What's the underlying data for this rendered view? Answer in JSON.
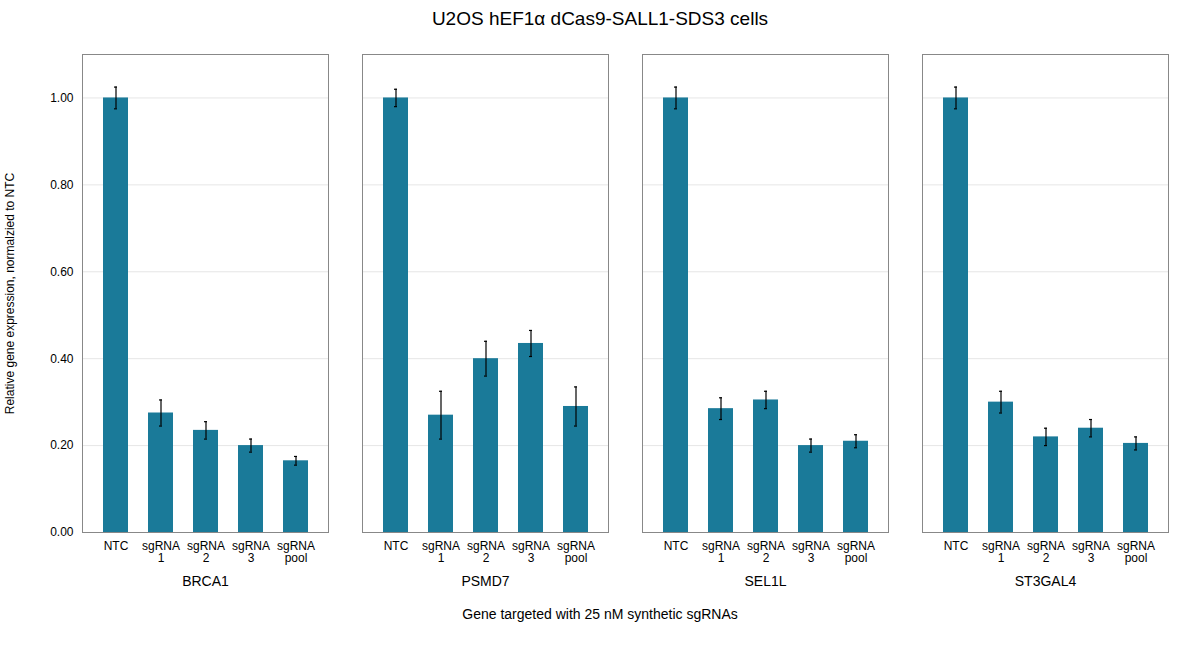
{
  "chart_data": {
    "type": "bar",
    "title": "U2OS hEF1α dCas9-SALL1-SDS3 cells",
    "xlabel": "Gene targeted with 25 nM synthetic sgRNAs",
    "ylabel": "Relative gene expression, normalzied to NTC",
    "color": "#1a7a99",
    "categories": [
      "NTC",
      "sgRNA\n1",
      "sgRNA\n2",
      "sgRNA\n3",
      "sgRNA\npool"
    ],
    "groups": [
      {
        "name": "BRCA1",
        "values": [
          1.0,
          0.275,
          0.235,
          0.2,
          0.165
        ],
        "errors": [
          0.025,
          0.03,
          0.02,
          0.015,
          0.01
        ]
      },
      {
        "name": "PSMD7",
        "values": [
          1.0,
          0.27,
          0.4,
          0.435,
          0.29
        ],
        "errors": [
          0.02,
          0.055,
          0.04,
          0.03,
          0.045
        ]
      },
      {
        "name": "SEL1L",
        "values": [
          1.0,
          0.285,
          0.305,
          0.2,
          0.21
        ],
        "errors": [
          0.025,
          0.025,
          0.02,
          0.015,
          0.015
        ]
      },
      {
        "name": "ST3GAL4",
        "values": [
          1.0,
          0.3,
          0.22,
          0.24,
          0.205
        ],
        "errors": [
          0.025,
          0.025,
          0.02,
          0.02,
          0.015
        ]
      }
    ],
    "ylim": [
      0,
      1.1
    ],
    "yticks": [
      {
        "value": 0.0,
        "label": "0.00"
      },
      {
        "value": 0.2,
        "label": "0.20"
      },
      {
        "value": 0.4,
        "label": "0.40"
      },
      {
        "value": 0.6,
        "label": "0.60"
      },
      {
        "value": 0.8,
        "label": "0.80"
      },
      {
        "value": 1.0,
        "label": "1.00"
      }
    ],
    "grid": true
  }
}
